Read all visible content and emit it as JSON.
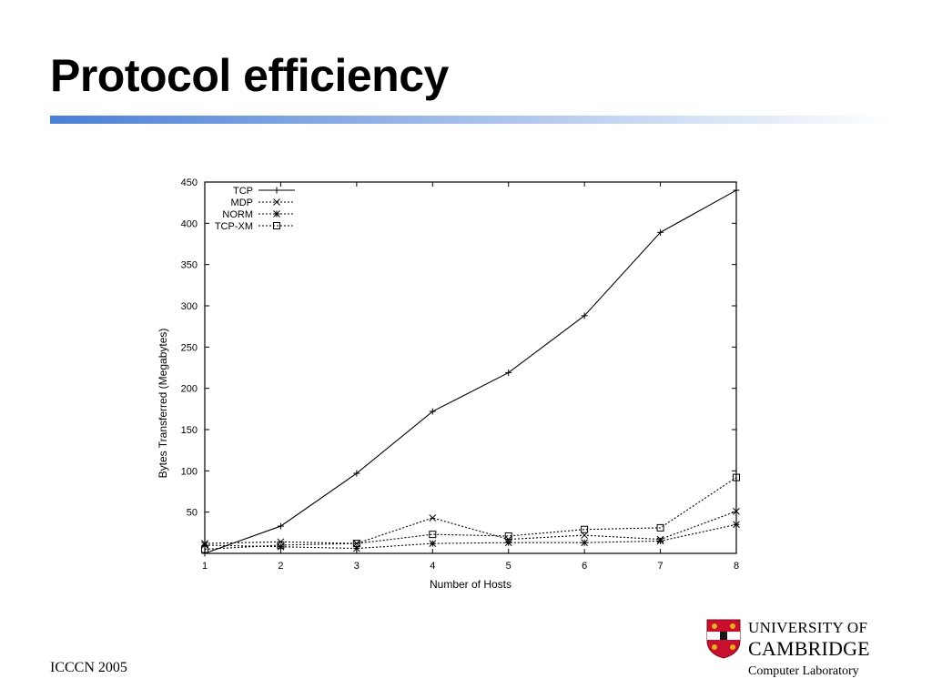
{
  "slide": {
    "title": "Protocol efficiency",
    "footer_left": "ICCCN 2005"
  },
  "logo": {
    "line1": "UNIVERSITY OF",
    "line2": "CAMBRIDGE",
    "line3": "Computer Laboratory",
    "shield_color": "#c8102e"
  },
  "colors": {
    "title_rule_start": "#4a7fd6",
    "title_rule_end": "#ffffff"
  },
  "chart_data": {
    "type": "line",
    "title": "",
    "xlabel": "Number of Hosts",
    "ylabel": "Bytes Transferred (Megabytes)",
    "x": [
      1,
      2,
      3,
      4,
      5,
      6,
      7,
      8
    ],
    "xlim": [
      1,
      8
    ],
    "ylim": [
      0,
      450
    ],
    "xticks": [
      1,
      2,
      3,
      4,
      5,
      6,
      7,
      8
    ],
    "yticks": [
      50,
      100,
      150,
      200,
      250,
      300,
      350,
      400,
      450
    ],
    "grid": false,
    "legend_position": "top-left",
    "series": [
      {
        "name": "TCP",
        "values": [
          0,
          33,
          97,
          172,
          219,
          288,
          389,
          440
        ],
        "line": "solid",
        "marker": "plus"
      },
      {
        "name": "MDP",
        "values": [
          12,
          14,
          12,
          43,
          17,
          22,
          17,
          51
        ],
        "line": "dotted",
        "marker": "cross"
      },
      {
        "name": "NORM",
        "values": [
          10,
          8,
          6,
          12,
          13,
          13,
          15,
          35
        ],
        "line": "dotted",
        "marker": "star"
      },
      {
        "name": "TCP-XM",
        "values": [
          5,
          10,
          12,
          23,
          21,
          29,
          31,
          92
        ],
        "line": "dotted",
        "marker": "square"
      }
    ]
  }
}
